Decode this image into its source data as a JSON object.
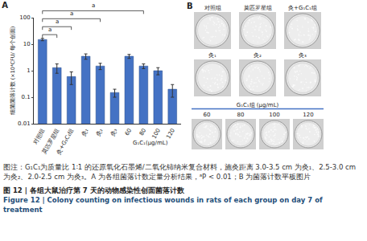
{
  "chart_data": {
    "type": "bar",
    "title": "A",
    "y_label": "细菌菌落计数 (×10⁴CFU/ 每个创面)",
    "categories": [
      "对照组",
      "莫匹罗星组",
      "灸+G₁C₁组",
      "灸₁",
      "灸₂",
      "灸₃",
      "60",
      "80",
      "100",
      "120"
    ],
    "values": [
      15,
      1.3,
      0.6,
      3.5,
      1.5,
      0.15,
      3.5,
      1.5,
      1.0,
      0.2
    ],
    "errors": [
      1.5,
      0.5,
      0.3,
      0.8,
      0.4,
      0.05,
      0.6,
      0.3,
      0.3,
      0.1
    ],
    "color": "#4472c4",
    "log": "y",
    "ylim": [
      0.01,
      100
    ],
    "yticks": [
      0.01,
      0.1,
      1,
      10,
      100
    ],
    "grid": false,
    "annotations": [
      {
        "text": "G₁C₁(μg/mL)",
        "from": 6,
        "to": 9
      }
    ],
    "significance": [
      {
        "from": 0,
        "to": 1,
        "label": "a"
      },
      {
        "from": 0,
        "to": 2,
        "label": "a"
      },
      {
        "from": 0,
        "to": 4,
        "label": "a"
      },
      {
        "from": 0,
        "to": 7,
        "label": "a"
      }
    ]
  },
  "panel_b": {
    "label": "B",
    "rows": [
      {
        "labels": [
          "对照组",
          "莫匹罗星组",
          "灸+G₁C₁组"
        ]
      },
      {
        "labels": [
          "灸₁",
          "灸₂",
          "灸₃"
        ]
      },
      {
        "heading": "G₁C₁组 (μg/mL)",
        "labels": [
          "60",
          "80",
          "100",
          "120"
        ]
      }
    ]
  },
  "caption": {
    "note": "图注：G₁C₁为质量比 1∶1 的还原氧化石墨烯/二氧化铈纳米复合材料，施灸距离 3.0-3.5 cm 为灸₁、2.5-3.0 cm 为灸₂、2.0-2.5 cm 为灸₃。A 为各组菌落计数定量分析结果，ᵃP < 0.01；B 为菌落计数平板图片",
    "title": "图 12 | 各组大鼠治疗第 7 天的动物感染性创面菌落计数",
    "title_en": "Figure 12 | Colony counting on infectious wounds in rats of each group on day 7 of treatment"
  }
}
